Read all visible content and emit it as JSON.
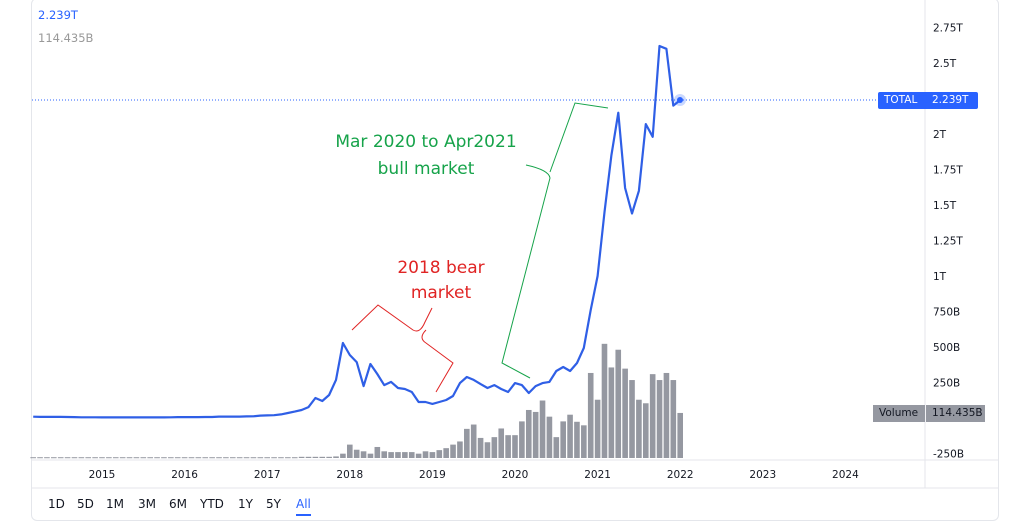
{
  "legend": {
    "price_value": "2.239T",
    "volume_value": "114.435B"
  },
  "price_tag": {
    "label": "TOTAL",
    "value": "2.239T"
  },
  "volume_tag": {
    "label": "Volume",
    "value": "114.435B"
  },
  "range_buttons": [
    "1D",
    "5D",
    "1M",
    "3M",
    "6M",
    "YTD",
    "1Y",
    "5Y",
    "All"
  ],
  "active_range": "All",
  "annotations": {
    "bear": {
      "line1": "2018 bear",
      "line2": "market",
      "color": "#e02424"
    },
    "bull": {
      "line1": "Mar 2020 to Apr2021",
      "line2": "bull market",
      "color": "#16a34a"
    }
  },
  "colors": {
    "line": "#2f5fe6",
    "volume": "#9598a1",
    "tag_blue": "#2962ff",
    "tag_gray": "#9598a1"
  },
  "chart_data": {
    "type": "line",
    "title": "",
    "xlabel": "",
    "ylabel": "",
    "x_ticks": [
      "2015",
      "2016",
      "2017",
      "2018",
      "2019",
      "2020",
      "2021",
      "2022",
      "2023",
      "2024"
    ],
    "y_ticks": [
      "2.75T",
      "2.5T",
      "2T",
      "1.75T",
      "1.5T",
      "1.25T",
      "1T",
      "750B",
      "500B",
      "250B",
      "-250B"
    ],
    "ylim_billions": [
      -250,
      2750
    ],
    "x": [
      "2014-03",
      "2014-04",
      "2014-05",
      "2014-06",
      "2014-07",
      "2014-08",
      "2014-09",
      "2014-10",
      "2014-11",
      "2014-12",
      "2015-01",
      "2015-02",
      "2015-03",
      "2015-04",
      "2015-05",
      "2015-06",
      "2015-07",
      "2015-08",
      "2015-09",
      "2015-10",
      "2015-11",
      "2015-12",
      "2016-01",
      "2016-02",
      "2016-03",
      "2016-04",
      "2016-05",
      "2016-06",
      "2016-07",
      "2016-08",
      "2016-09",
      "2016-10",
      "2016-11",
      "2016-12",
      "2017-01",
      "2017-02",
      "2017-03",
      "2017-04",
      "2017-05",
      "2017-06",
      "2017-07",
      "2017-08",
      "2017-09",
      "2017-10",
      "2017-11",
      "2017-12",
      "2018-01",
      "2018-02",
      "2018-03",
      "2018-04",
      "2018-05",
      "2018-06",
      "2018-07",
      "2018-08",
      "2018-09",
      "2018-10",
      "2018-11",
      "2018-12",
      "2019-01",
      "2019-02",
      "2019-03",
      "2019-04",
      "2019-05",
      "2019-06",
      "2019-07",
      "2019-08",
      "2019-09",
      "2019-10",
      "2019-11",
      "2019-12",
      "2020-01",
      "2020-02",
      "2020-03",
      "2020-04",
      "2020-05",
      "2020-06",
      "2020-07",
      "2020-08",
      "2020-09",
      "2020-10",
      "2020-11",
      "2020-12",
      "2021-01",
      "2021-02",
      "2021-03",
      "2021-04",
      "2021-05",
      "2021-06",
      "2021-07",
      "2021-08",
      "2021-09",
      "2021-10",
      "2021-11",
      "2021-12",
      "2022-01"
    ],
    "series": [
      {
        "name": "TOTAL",
        "unit": "B",
        "values": [
          9,
          8,
          8,
          8,
          8,
          7,
          6,
          5,
          5,
          5,
          4,
          4,
          4,
          4,
          4,
          4,
          4,
          4,
          4,
          4,
          5,
          6,
          6,
          6,
          6,
          7,
          7,
          10,
          10,
          10,
          10,
          11,
          12,
          17,
          18,
          20,
          25,
          35,
          45,
          56,
          77,
          141,
          120,
          162,
          268,
          528,
          444,
          394,
          225,
          380,
          310,
          232,
          254,
          211,
          204,
          183,
          113,
          113,
          99,
          113,
          127,
          155,
          246,
          289,
          268,
          239,
          211,
          232,
          204,
          183,
          246,
          232,
          176,
          225,
          246,
          254,
          331,
          359,
          331,
          387,
          493,
          760,
          1000,
          1450,
          1850,
          2150,
          1620,
          1440,
          1600,
          2070,
          1980,
          2620,
          2600,
          2200,
          2239
        ]
      },
      {
        "name": "Volume",
        "type": "bar",
        "unit": "B",
        "values": [
          2,
          2,
          2,
          2,
          2,
          2,
          2,
          2,
          2,
          2,
          2,
          2,
          2,
          2,
          2,
          2,
          2,
          2,
          2,
          2,
          2,
          2,
          2,
          2,
          2,
          2,
          2,
          2,
          2,
          2,
          2,
          2,
          2,
          2,
          2,
          2,
          2,
          2,
          2,
          3,
          3,
          3,
          3,
          3,
          4,
          11,
          34,
          21,
          17,
          11,
          28,
          17,
          15,
          15,
          15,
          15,
          11,
          17,
          15,
          20,
          25,
          34,
          42,
          74,
          85,
          51,
          40,
          53,
          75,
          58,
          58,
          93,
          122,
          117,
          146,
          105,
          53,
          93,
          110,
          92,
          83,
          216,
          148,
          290,
          230,
          275,
          227,
          198,
          148,
          139,
          213,
          198,
          216,
          198,
          114.435
        ]
      }
    ],
    "last_value": "2.239T",
    "grid": false,
    "legend": "top-left"
  }
}
